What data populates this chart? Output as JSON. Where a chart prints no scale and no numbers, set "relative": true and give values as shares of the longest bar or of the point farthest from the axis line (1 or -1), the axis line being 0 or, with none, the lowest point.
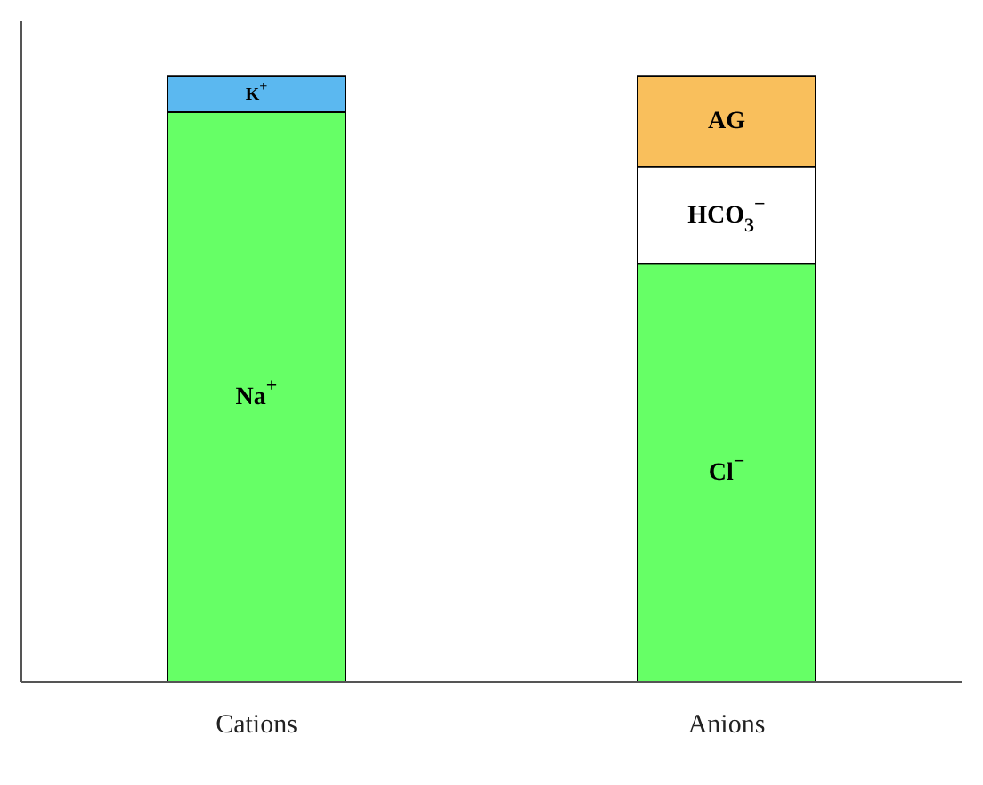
{
  "chart_data": {
    "type": "bar",
    "stacked": true,
    "relative": true,
    "categories": [
      "Cations",
      "Anions"
    ],
    "series": [
      {
        "name": "Na$^{+}$",
        "color": "#66ff66",
        "values": [
          0.94,
          null
        ]
      },
      {
        "name": "K$^{+}$",
        "color": "#5bb8f0",
        "values": [
          0.06,
          null
        ]
      },
      {
        "name": "Cl$^{−}$",
        "color": "#66ff66",
        "values": [
          null,
          0.69
        ]
      },
      {
        "name": "HCO$_{3}$$^{−}$",
        "color": "#ffffff",
        "values": [
          null,
          0.16
        ]
      },
      {
        "name": "AG",
        "color": "#f9bf5c",
        "values": [
          null,
          0.15
        ]
      }
    ]
  }
}
